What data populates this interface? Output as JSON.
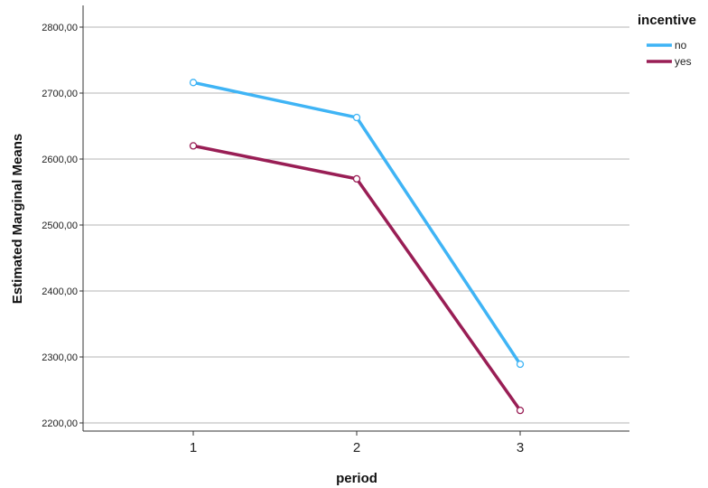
{
  "chart_data": {
    "type": "line",
    "xlabel": "period",
    "ylabel": "Estimated Marginal Means",
    "categories": [
      "1",
      "2",
      "3"
    ],
    "ylim": [
      2200,
      2800
    ],
    "yticks": [
      "2200,00",
      "2300,00",
      "2400,00",
      "2500,00",
      "2600,00",
      "2700,00",
      "2800,00"
    ],
    "ytick_values": [
      2200,
      2300,
      2400,
      2500,
      2600,
      2700,
      2800
    ],
    "grid": true,
    "legend": {
      "title": "incentive",
      "placement": "top-right"
    },
    "series": [
      {
        "name": "no",
        "color": "#3FB4F5",
        "values": [
          2716,
          2663,
          2289
        ]
      },
      {
        "name": "yes",
        "color": "#991E55",
        "values": [
          2620,
          2570,
          2219
        ]
      }
    ]
  }
}
